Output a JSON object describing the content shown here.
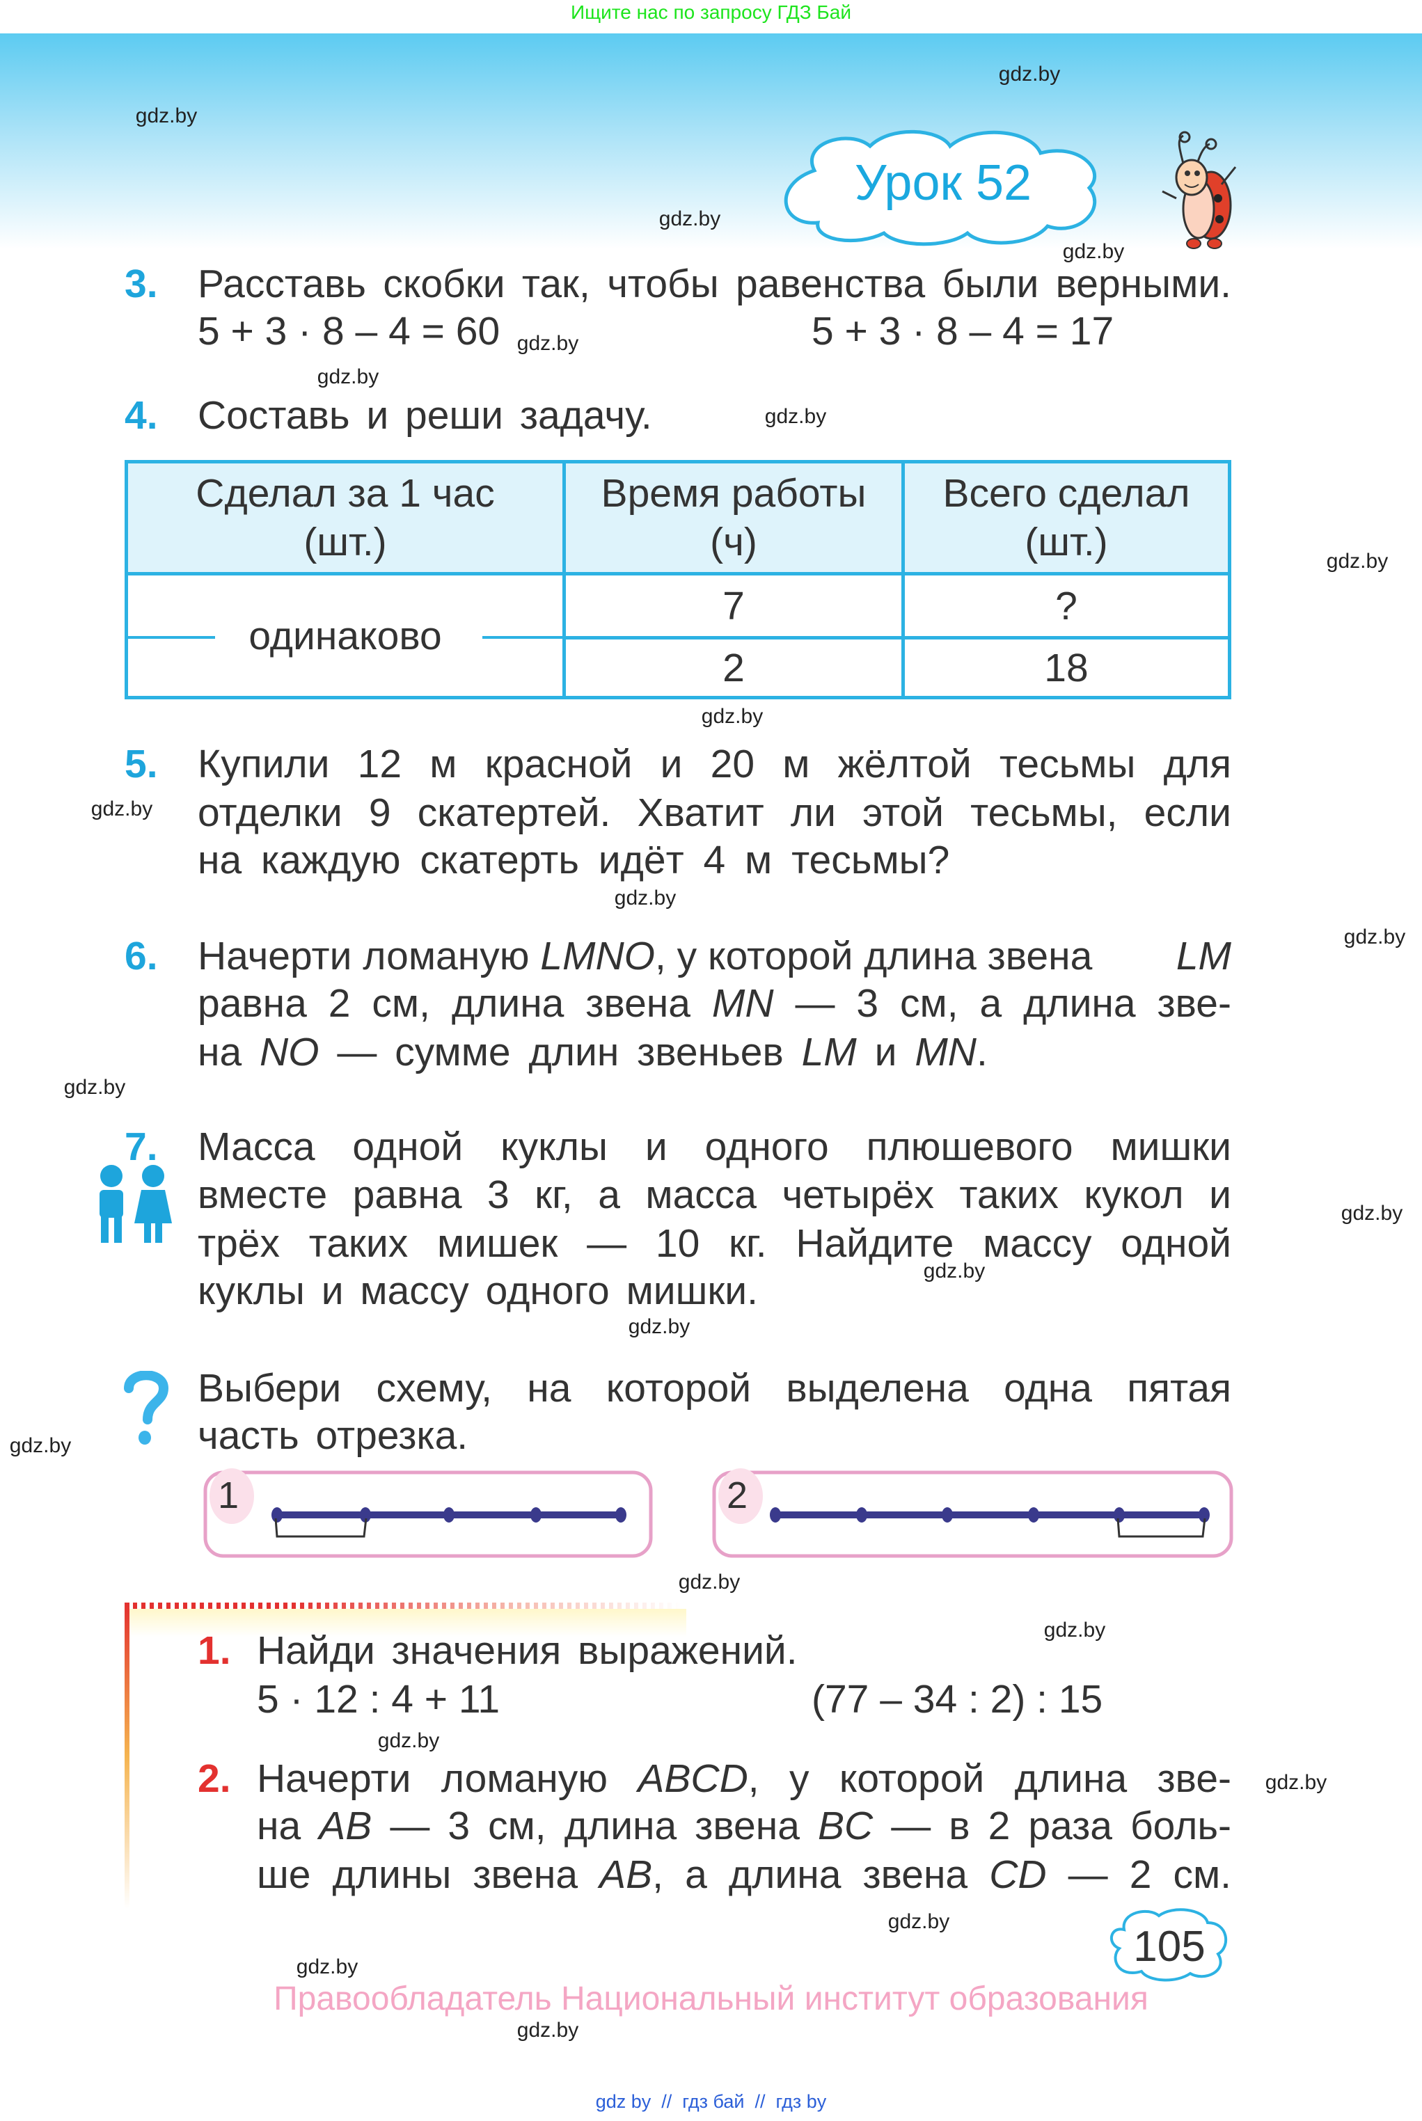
{
  "banner": "Ищите нас по запросу ГДЗ Бай",
  "lesson": {
    "title": "Урок 52"
  },
  "watermark": "gdz.by",
  "tasks": {
    "t3": {
      "num": "3.",
      "text": "Расставь скобки так, чтобы равенства были верными.",
      "eq1": "5 + 3 · 8 – 4 = 60",
      "eq2": "5 + 3 · 8 – 4 = 17"
    },
    "t4": {
      "num": "4.",
      "text": "Составь и реши задачу."
    },
    "t5": {
      "num": "5.",
      "lines": [
        "Купили 12 м красной и 20 м жёлтой тесьмы для",
        "отделки 9 скатертей. Хватит ли этой тесьмы, если",
        "на каждую скатерть идёт 4 м тесьмы?"
      ]
    },
    "t6": {
      "num": "6.",
      "l1a": "Начерти ломаную ",
      "l1b": "LMNO",
      "l1c": ", у которой длина звена ",
      "l1d": "LM",
      "l2a": "равна 2 см, длина звена ",
      "l2b": "MN",
      "l2c": " — 3 см, а длина зве-",
      "l3a": "на ",
      "l3b": "NO",
      "l3c": " — сумме длин звеньев ",
      "l3d": "LM",
      "l3e": " и ",
      "l3f": "MN",
      "l3g": "."
    },
    "t7": {
      "num": "7.",
      "lines": [
        "Масса одной куклы и одного плюшевого мишки",
        "вместе равна 3 кг, а масса четырёх таких кукол и",
        "трёх таких мишек — 10 кг. Найдите массу одной",
        "куклы и массу одного мишки."
      ]
    },
    "q": {
      "lines": [
        "Выбери схему, на которой выделена одна пятая",
        "часть отрезка."
      ],
      "scheme1": "1",
      "scheme2": "2"
    }
  },
  "table": {
    "headers": [
      [
        "Сделал за 1 час",
        "(шт.)"
      ],
      [
        "Время работы",
        "(ч)"
      ],
      [
        "Всего сделал",
        "(шт.)"
      ]
    ],
    "merged": "одинаково",
    "rows": [
      [
        "7",
        "?"
      ],
      [
        "2",
        "18"
      ]
    ]
  },
  "home": {
    "t1": {
      "num": "1.",
      "text": "Найди значения выражений.",
      "e1": "5 · 12 : 4 + 11",
      "e2": "(77 – 34 : 2) : 15"
    },
    "t2": {
      "num": "2.",
      "l1a": "Начерти ломаную ",
      "l1b": "ABCD",
      "l1c": ", у которой длина зве-",
      "l2a": "на ",
      "l2b": "AB",
      "l2c": " — 3 см, длина звена ",
      "l2d": "BC",
      "l2e": " — в 2 раза боль-",
      "l3a": "ше длины звена ",
      "l3b": "AB",
      "l3c": ", а длина звена ",
      "l3d": "CD",
      "l3e": " — 2 см."
    }
  },
  "page_number": "105",
  "footer": "Правообладатель Национальный институт образования",
  "links": [
    "gdz by",
    "гдз бай",
    "гдз by"
  ],
  "colors": {
    "accent": "#1ea5dc",
    "home_accent": "#e3312f",
    "scheme_line": "#3a3a8c",
    "footer": "#f4a6c4"
  }
}
